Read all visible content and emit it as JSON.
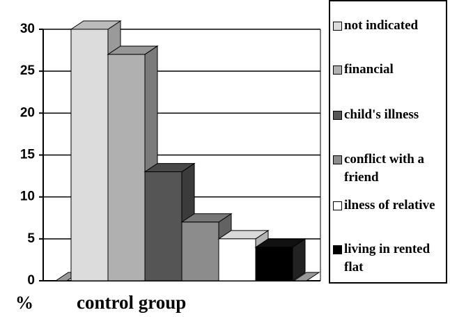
{
  "chart_data": {
    "type": "bar3d",
    "categories": [
      "not indicated",
      "financial",
      "child's illness",
      "conflict with a friend",
      "ilness of relative",
      "living in rented flat"
    ],
    "values": [
      30,
      27,
      13,
      7,
      5,
      4
    ],
    "colors": [
      "#dcdcdc",
      "#b0b0b0",
      "#555555",
      "#8c8c8c",
      "#ffffff",
      "#000000"
    ],
    "ylim": [
      0,
      30
    ],
    "yticks": [
      0,
      5,
      10,
      15,
      20,
      25,
      30
    ],
    "grid": true,
    "ylabel": "%",
    "xlabel": "control group",
    "legend": "right"
  }
}
